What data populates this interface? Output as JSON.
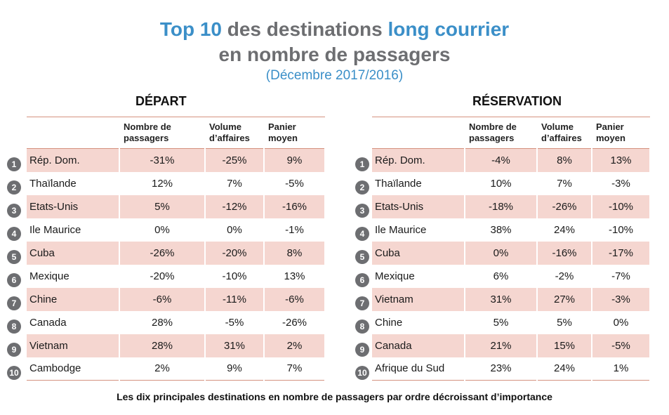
{
  "title": {
    "line1_a": "Top 10",
    "line1_b": " des destinations ",
    "line1_c": "long courrier",
    "line2": "en nombre de passagers",
    "period": "(Décembre 2017/2016)"
  },
  "headers": {
    "col1": "Nombre de passagers",
    "col2": "Volume d’affaires",
    "col3": "Panier moyen"
  },
  "footnote": "Les dix principales destinations en nombre de passagers par ordre décroissant d’importance",
  "chart_data": [
    {
      "type": "table",
      "title": "DÉPART",
      "columns": [
        "Nombre de passagers",
        "Volume d’affaires",
        "Panier moyen"
      ],
      "rows": [
        {
          "rank": "1",
          "name": "Rép. Dom.",
          "values": [
            "-31%",
            "-25%",
            "9%"
          ]
        },
        {
          "rank": "2",
          "name": "Thaïlande",
          "values": [
            "12%",
            "7%",
            "-5%"
          ]
        },
        {
          "rank": "3",
          "name": "Etats-Unis",
          "values": [
            "5%",
            "-12%",
            "-16%"
          ]
        },
        {
          "rank": "4",
          "name": "Ile Maurice",
          "values": [
            "0%",
            "0%",
            "-1%"
          ]
        },
        {
          "rank": "5",
          "name": "Cuba",
          "values": [
            "-26%",
            "-20%",
            "8%"
          ]
        },
        {
          "rank": "6",
          "name": "Mexique",
          "values": [
            "-20%",
            "-10%",
            "13%"
          ]
        },
        {
          "rank": "7",
          "name": "Chine",
          "values": [
            "-6%",
            "-11%",
            "-6%"
          ]
        },
        {
          "rank": "8",
          "name": "Canada",
          "values": [
            "28%",
            "-5%",
            "-26%"
          ]
        },
        {
          "rank": "9",
          "name": "Vietnam",
          "values": [
            "28%",
            "31%",
            "2%"
          ]
        },
        {
          "rank": "10",
          "name": "Cambodge",
          "values": [
            "2%",
            "9%",
            "7%"
          ]
        }
      ]
    },
    {
      "type": "table",
      "title": "RÉSERVATION",
      "columns": [
        "Nombre de passagers",
        "Volume d’affaires",
        "Panier moyen"
      ],
      "rows": [
        {
          "rank": "1",
          "name": "Rép. Dom.",
          "values": [
            "-4%",
            "8%",
            "13%"
          ]
        },
        {
          "rank": "2",
          "name": "Thaïlande",
          "values": [
            "10%",
            "7%",
            "-3%"
          ]
        },
        {
          "rank": "3",
          "name": "Etats-Unis",
          "values": [
            "-18%",
            "-26%",
            "-10%"
          ]
        },
        {
          "rank": "4",
          "name": "Ile Maurice",
          "values": [
            "38%",
            "24%",
            "-10%"
          ]
        },
        {
          "rank": "5",
          "name": "Cuba",
          "values": [
            "0%",
            "-16%",
            "-17%"
          ]
        },
        {
          "rank": "6",
          "name": "Mexique",
          "values": [
            "6%",
            "-2%",
            "-7%"
          ]
        },
        {
          "rank": "7",
          "name": "Vietnam",
          "values": [
            "31%",
            "27%",
            "-3%"
          ]
        },
        {
          "rank": "8",
          "name": "Chine",
          "values": [
            "5%",
            "5%",
            "0%"
          ]
        },
        {
          "rank": "9",
          "name": "Canada",
          "values": [
            "21%",
            "15%",
            "-5%"
          ]
        },
        {
          "rank": "10",
          "name": "Afrique du Sud",
          "values": [
            "23%",
            "24%",
            "1%"
          ]
        }
      ]
    }
  ]
}
